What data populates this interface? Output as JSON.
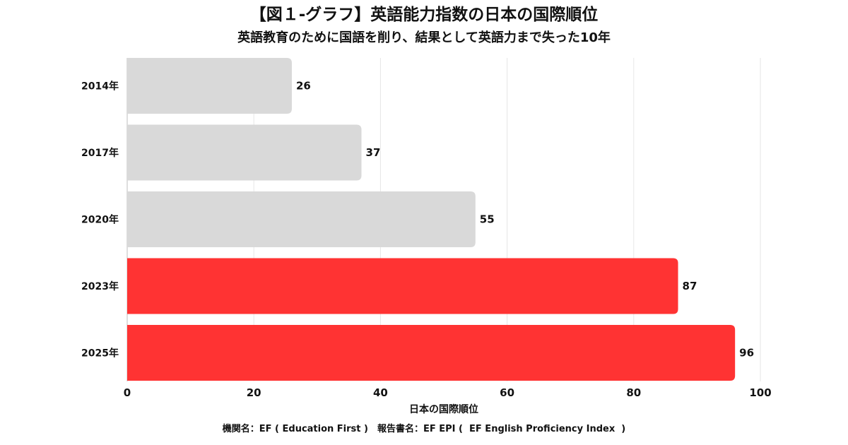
{
  "header": {
    "title": "【図１-グラフ】英語能力指数の日本の国際順位",
    "subtitle": "英語教育のために国語を削り、結果として英語力まで失った10年"
  },
  "footer": {
    "note": "機関名：EF ( Education First )　報告書名：EF EPI (  EF English Proficiency Index  )"
  },
  "chart_data": {
    "type": "bar",
    "orientation": "horizontal",
    "title": "【図１-グラフ】英語能力指数の日本の国際順位",
    "subtitle": "英語教育のために国語を削り、結果として英語力まで失った10年",
    "xlabel": "日本の国際順位",
    "ylabel": "",
    "categories": [
      "2014年",
      "2017年",
      "2020年",
      "2023年",
      "2025年"
    ],
    "values": [
      26,
      37,
      55,
      87,
      96
    ],
    "bar_colors": [
      "#d9d9d9",
      "#d9d9d9",
      "#d9d9d9",
      "#ff3333",
      "#ff3333"
    ],
    "xlim": [
      0,
      100
    ],
    "xticks": [
      0,
      20,
      40,
      60,
      80,
      100
    ],
    "grid": true,
    "data_labels": true
  }
}
